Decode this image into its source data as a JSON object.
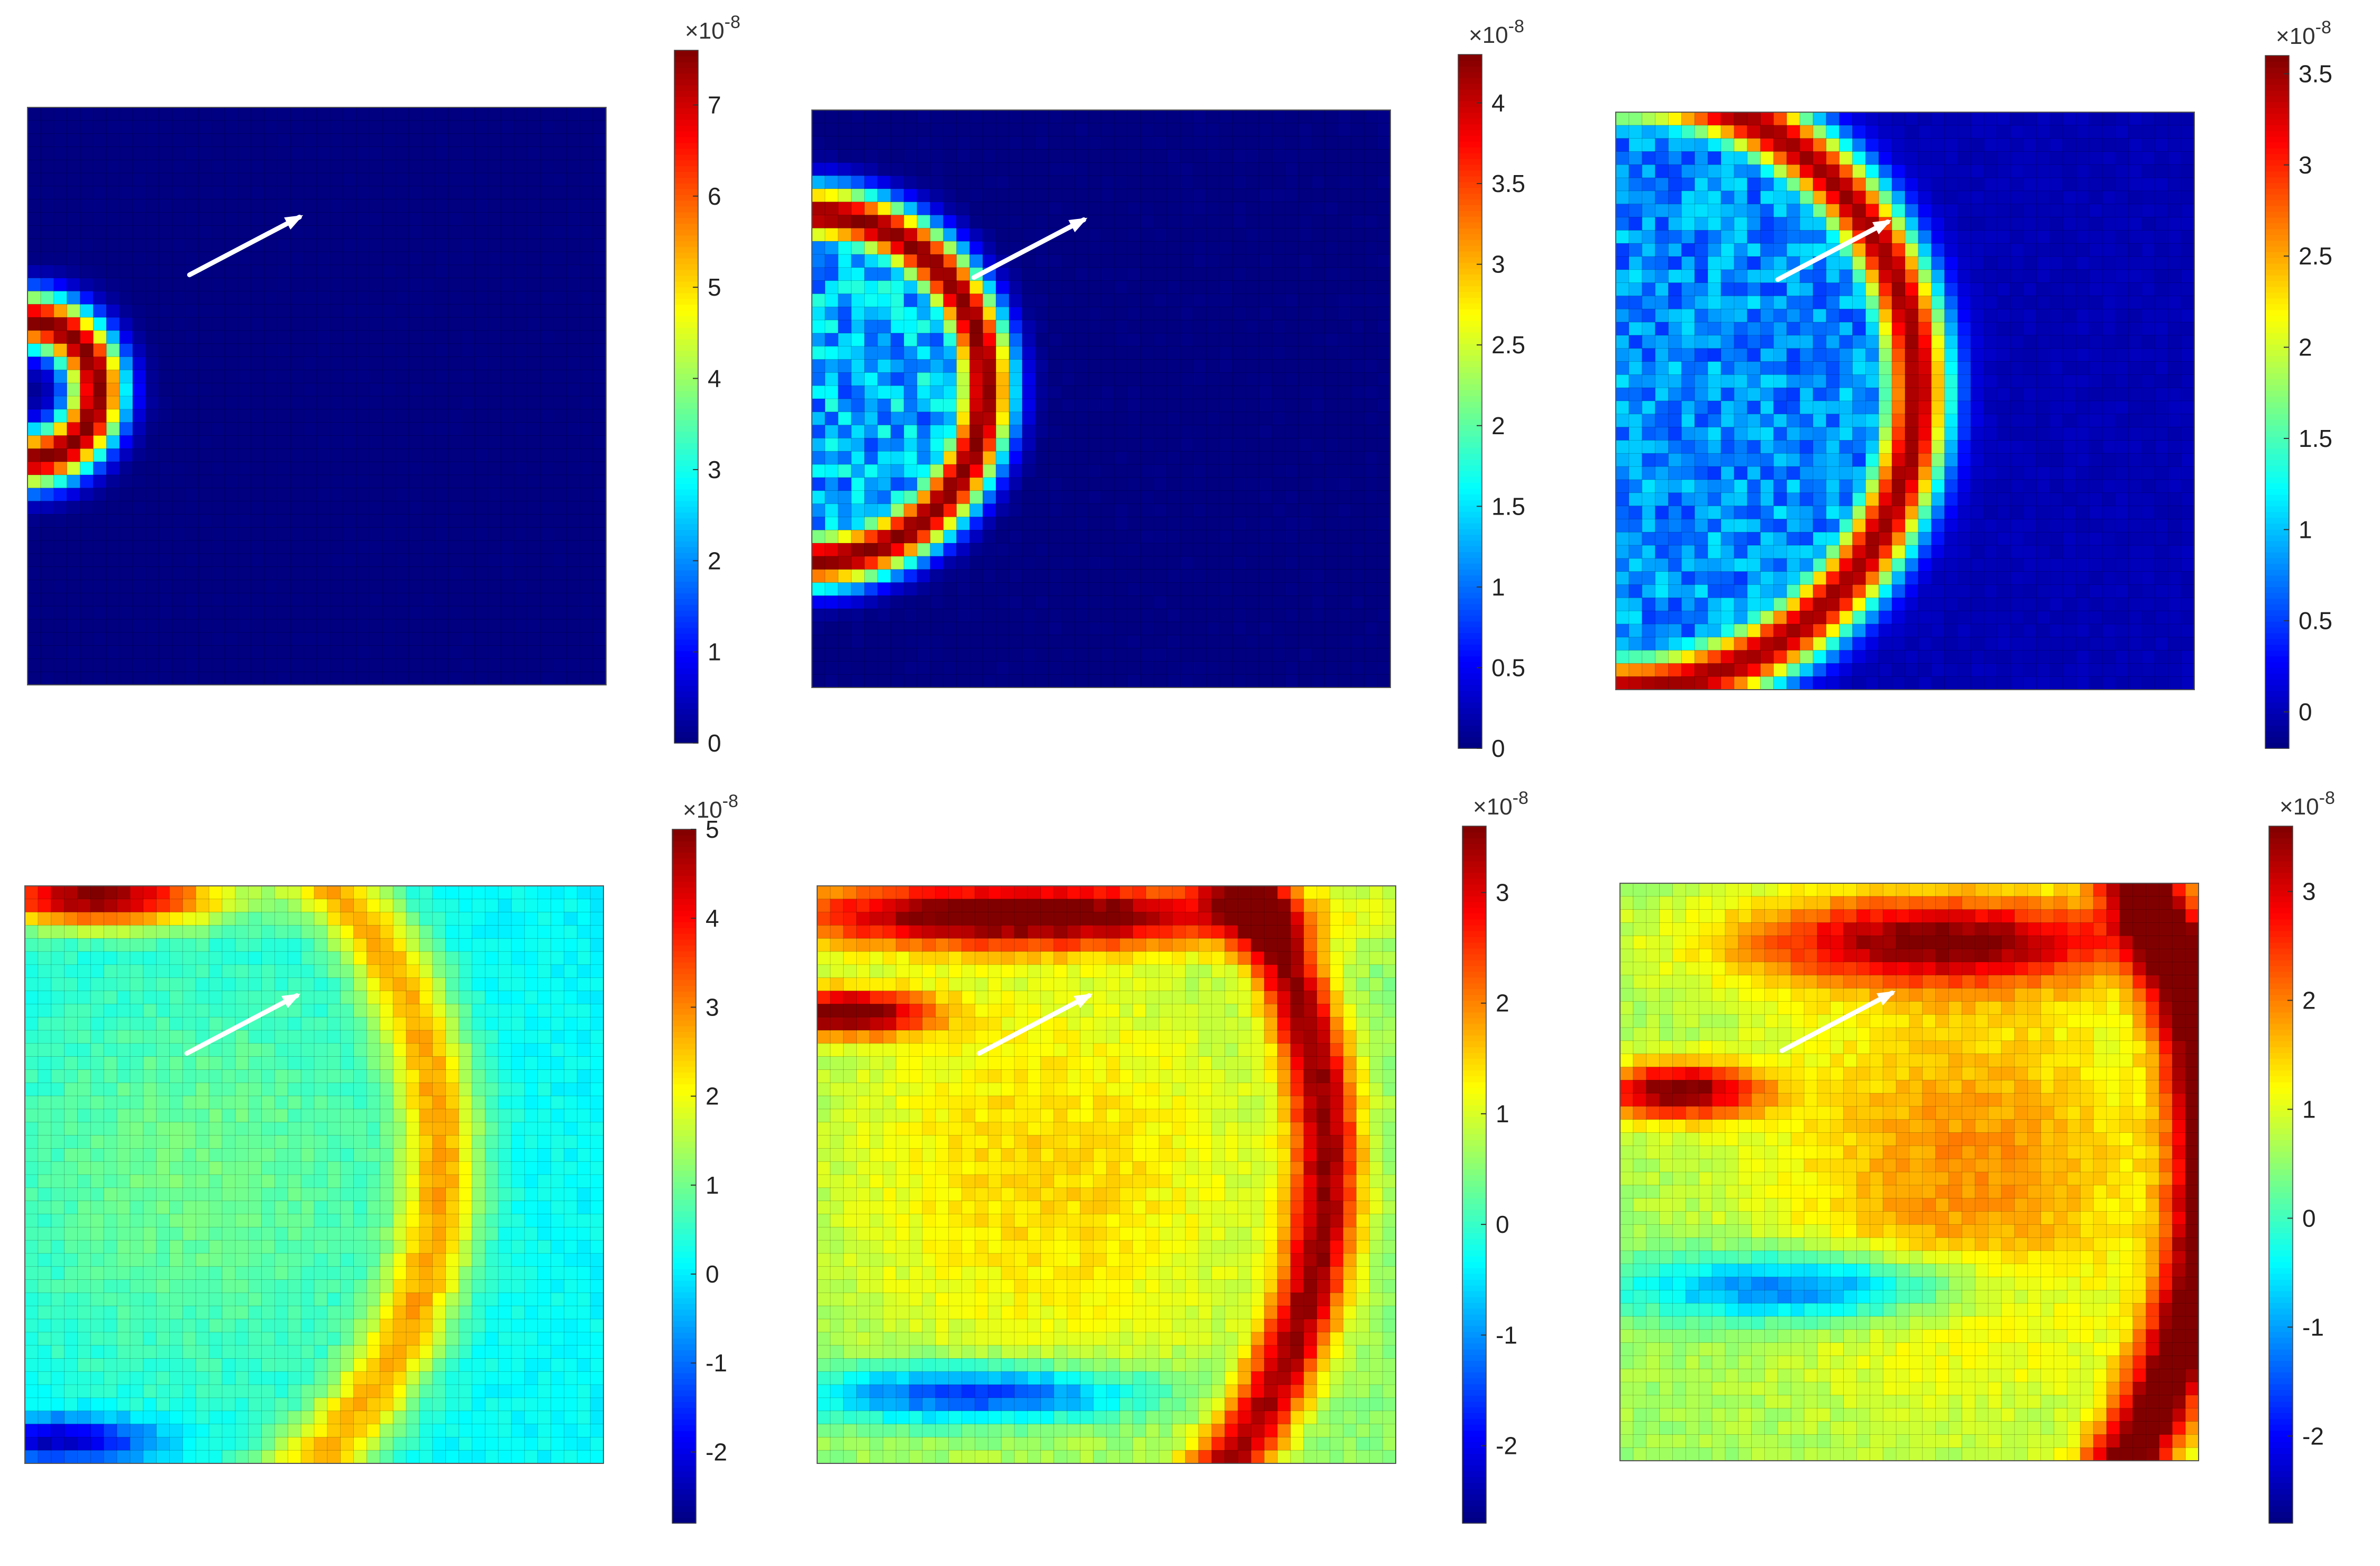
{
  "figure_label": "",
  "chart_data": [
    {
      "type": "heatmap",
      "colormap": "jet",
      "clim": [
        0,
        7.6
      ],
      "colorbar_exponent": "×10",
      "colorbar_exponent_power": "-8",
      "colorbar_ticks": [
        "0",
        "1",
        "2",
        "3",
        "4",
        "5",
        "6",
        "7"
      ],
      "colorbar_tick_values": [
        0,
        1,
        2,
        3,
        4,
        5,
        6,
        7
      ],
      "pattern": "ring",
      "ring": {
        "center": [
          0.0,
          0.49
        ],
        "radius": 0.12,
        "width": 0.05,
        "peak": 7.6,
        "inner_level": 0.4
      },
      "arrow": {
        "from": [
          0.28,
          0.29
        ],
        "to": [
          0.47,
          0.19
        ]
      }
    },
    {
      "type": "heatmap",
      "colormap": "jet",
      "clim": [
        0,
        4.3
      ],
      "colorbar_exponent": "×10",
      "colorbar_exponent_power": "-8",
      "colorbar_ticks": [
        "0",
        "0.5",
        "1",
        "1.5",
        "2",
        "2.5",
        "3",
        "3.5",
        "4"
      ],
      "colorbar_tick_values": [
        0,
        0.5,
        1,
        1.5,
        2,
        2.5,
        3,
        3.5,
        4
      ],
      "pattern": "ring",
      "ring": {
        "center": [
          0.0,
          0.48
        ],
        "radius": 0.3,
        "width": 0.05,
        "peak": 4.3,
        "inner_level": 1.6
      },
      "arrow": {
        "from": [
          0.28,
          0.29
        ],
        "to": [
          0.47,
          0.19
        ]
      }
    },
    {
      "type": "heatmap",
      "colormap": "jet",
      "clim": [
        -0.2,
        3.6
      ],
      "colorbar_exponent": "×10",
      "colorbar_exponent_power": "-8",
      "colorbar_ticks": [
        "0",
        "0.5",
        "1",
        "1.5",
        "2",
        "2.5",
        "3",
        "3.5"
      ],
      "colorbar_tick_values": [
        0,
        0.5,
        1,
        1.5,
        2,
        2.5,
        3,
        3.5
      ],
      "pattern": "ring",
      "ring": {
        "center": [
          0.0,
          0.48
        ],
        "radius": 0.52,
        "width": 0.06,
        "peak": 3.5,
        "inner_level": 1.0
      },
      "arrow": {
        "from": [
          0.28,
          0.29
        ],
        "to": [
          0.47,
          0.19
        ]
      }
    },
    {
      "type": "heatmap",
      "colormap": "jet",
      "clim": [
        -2.8,
        5.0
      ],
      "colorbar_exponent": "×10",
      "colorbar_exponent_power": "-8",
      "colorbar_ticks": [
        "-2",
        "-1",
        "0",
        "1",
        "2",
        "3",
        "4",
        "5"
      ],
      "colorbar_tick_values": [
        -2,
        -1,
        0,
        1,
        2,
        3,
        4,
        5
      ],
      "pattern": "wave",
      "background_level": 0.1,
      "features": [
        {
          "kind": "ring",
          "center": [
            0.0,
            0.48
          ],
          "radius": 0.72,
          "width": 0.07,
          "peak": 2.4
        },
        {
          "kind": "blob",
          "center": [
            0.12,
            0.02
          ],
          "size": [
            0.22,
            0.05
          ],
          "peak": 4.8
        },
        {
          "kind": "blob",
          "center": [
            0.06,
            0.96
          ],
          "size": [
            0.16,
            0.04
          ],
          "peak": -2.6
        },
        {
          "kind": "blob",
          "center": [
            0.3,
            0.5
          ],
          "size": [
            0.4,
            0.4
          ],
          "peak": 0.9
        }
      ],
      "arrow": {
        "from": [
          0.28,
          0.29
        ],
        "to": [
          0.47,
          0.19
        ]
      }
    },
    {
      "type": "heatmap",
      "colormap": "jet",
      "clim": [
        -2.7,
        3.6
      ],
      "colorbar_exponent": "×10",
      "colorbar_exponent_power": "-8",
      "colorbar_ticks": [
        "-2",
        "-1",
        "0",
        "1",
        "2",
        "3"
      ],
      "colorbar_tick_values": [
        -2,
        -1,
        0,
        1,
        2,
        3
      ],
      "pattern": "wave",
      "background_level": 0.5,
      "features": [
        {
          "kind": "ring",
          "center": [
            0.0,
            0.48
          ],
          "radius": 0.88,
          "width": 0.06,
          "peak": 2.8
        },
        {
          "kind": "blob",
          "center": [
            0.35,
            0.05
          ],
          "size": [
            0.45,
            0.06
          ],
          "peak": 3.3
        },
        {
          "kind": "blob",
          "center": [
            0.05,
            0.22
          ],
          "size": [
            0.15,
            0.04
          ],
          "peak": 3.3
        },
        {
          "kind": "blob",
          "center": [
            0.28,
            0.88
          ],
          "size": [
            0.28,
            0.05
          ],
          "peak": -2.4
        },
        {
          "kind": "blob",
          "center": [
            0.4,
            0.5
          ],
          "size": [
            0.4,
            0.4
          ],
          "peak": 1.0
        }
      ],
      "arrow": {
        "from": [
          0.28,
          0.29
        ],
        "to": [
          0.47,
          0.19
        ]
      }
    },
    {
      "type": "heatmap",
      "colormap": "jet",
      "clim": [
        -2.8,
        3.6
      ],
      "colorbar_exponent": "×10",
      "colorbar_exponent_power": "-8",
      "colorbar_ticks": [
        "-2",
        "-1",
        "0",
        "1",
        "2",
        "3"
      ],
      "colorbar_tick_values": [
        -2,
        -1,
        0,
        1,
        2,
        3
      ],
      "pattern": "wave",
      "background_level": 0.6,
      "features": [
        {
          "kind": "ring",
          "center": [
            0.0,
            0.48
          ],
          "radius": 1.02,
          "width": 0.07,
          "peak": 3.3
        },
        {
          "kind": "blob",
          "center": [
            0.55,
            0.1
          ],
          "size": [
            0.35,
            0.08
          ],
          "peak": 2.8
        },
        {
          "kind": "blob",
          "center": [
            0.1,
            0.36
          ],
          "size": [
            0.14,
            0.05
          ],
          "peak": 3.0
        },
        {
          "kind": "blob",
          "center": [
            0.32,
            0.7
          ],
          "size": [
            0.3,
            0.06
          ],
          "peak": -2.2
        },
        {
          "kind": "blob",
          "center": [
            0.6,
            0.5
          ],
          "size": [
            0.35,
            0.35
          ],
          "peak": 1.3
        }
      ],
      "arrow": {
        "from": [
          0.28,
          0.29
        ],
        "to": [
          0.47,
          0.19
        ]
      }
    }
  ]
}
